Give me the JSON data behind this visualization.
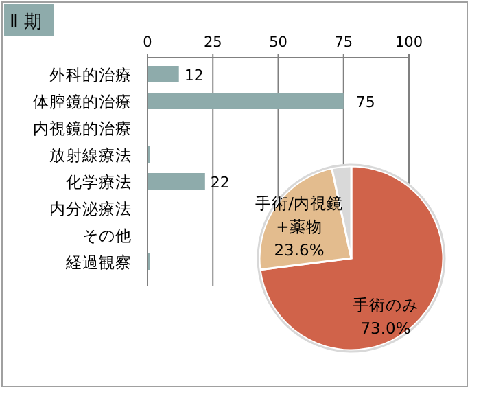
{
  "chart_data": [
    {
      "type": "bar",
      "orientation": "horizontal",
      "title": "Ⅱ 期",
      "categories": [
        "外科的治療",
        "体腔鏡的治療",
        "内視鏡的治療",
        "放射線療法",
        "化学療法",
        "内分泌療法",
        "その他",
        "経過観察"
      ],
      "values": [
        12,
        75,
        0,
        1,
        22,
        0,
        0,
        1
      ],
      "value_labels": [
        "12",
        "75",
        null,
        null,
        "22",
        null,
        null,
        null
      ],
      "color": "#8eabab",
      "xlim": [
        0,
        100
      ],
      "xticks": [
        0,
        25,
        50,
        75,
        100
      ],
      "grid": "x"
    },
    {
      "type": "pie",
      "categories": [
        "手術のみ",
        "手術/内視鏡\n+薬物",
        null
      ],
      "values": [
        73.0,
        23.6,
        3.4
      ],
      "value_labels": [
        "73.0%",
        "23.6%",
        null
      ],
      "colors": [
        "#d0634a",
        "#e3bc8e",
        "#d9d9d9"
      ]
    }
  ]
}
